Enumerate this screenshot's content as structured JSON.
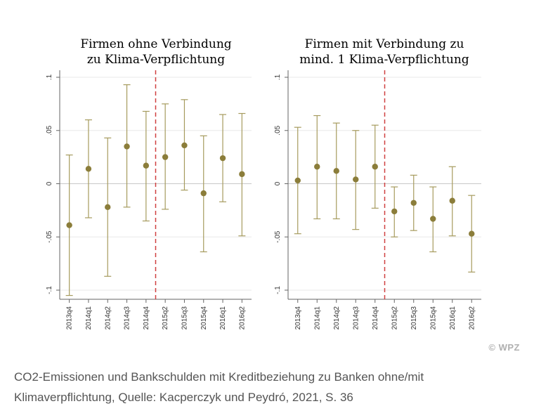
{
  "chart_data": [
    {
      "type": "scatter",
      "title_lines": [
        "Firmen ohne Verbindung",
        "zu Klima-Verpflichtung"
      ],
      "categories": [
        "2013q4",
        "2014q1",
        "2014q2",
        "2014q3",
        "2014q4",
        "2015q2",
        "2015q3",
        "2015q4",
        "2016q1",
        "2016q2"
      ],
      "values": [
        -0.039,
        0.014,
        -0.022,
        0.035,
        0.017,
        0.025,
        0.036,
        -0.009,
        0.024,
        0.009
      ],
      "lower": [
        -0.105,
        -0.032,
        -0.087,
        -0.022,
        -0.035,
        -0.024,
        -0.006,
        -0.064,
        -0.017,
        -0.049
      ],
      "upper": [
        0.027,
        0.06,
        0.043,
        0.093,
        0.068,
        0.075,
        0.079,
        0.045,
        0.065,
        0.066
      ],
      "ylim": [
        -0.1,
        0.1
      ],
      "yticks": [
        0.1,
        0.05,
        0,
        -0.05,
        -0.1
      ],
      "ytick_labels": [
        ".1",
        ".05",
        "0",
        "-.05",
        "-.1"
      ],
      "vline_after_index": 4,
      "grid": true
    },
    {
      "type": "scatter",
      "title_lines": [
        "Firmen mit Verbindung zu",
        "mind. 1 Klima-Verpflichtung"
      ],
      "categories": [
        "2013q4",
        "2014q1",
        "2014q2",
        "2014q3",
        "2014q4",
        "2015q2",
        "2015q3",
        "2015q4",
        "2016q1",
        "2016q2"
      ],
      "values": [
        0.003,
        0.016,
        0.012,
        0.004,
        0.016,
        -0.026,
        -0.018,
        -0.033,
        -0.016,
        -0.047
      ],
      "lower": [
        -0.047,
        -0.033,
        -0.033,
        -0.043,
        -0.023,
        -0.05,
        -0.044,
        -0.064,
        -0.049,
        -0.083
      ],
      "upper": [
        0.053,
        0.064,
        0.057,
        0.05,
        0.055,
        -0.003,
        0.008,
        -0.003,
        0.016,
        -0.011
      ],
      "ylim": [
        -0.1,
        0.1
      ],
      "yticks": [
        0.1,
        0.05,
        0,
        -0.05,
        -0.1
      ],
      "ytick_labels": [
        ".1",
        ".05",
        "0",
        "-.05",
        "-.1"
      ],
      "vline_after_index": 4,
      "grid": true
    }
  ],
  "colors": {
    "marker": "#8b7d3a",
    "errorbar": "#a69b5e",
    "vline": "#d04040",
    "axis": "#666666",
    "grid": "#e8e8e8"
  },
  "credit": "© WPZ",
  "caption": "CO2-Emissionen und Bankschulden mit Kreditbeziehung zu Banken ohne/mit Klimaverpflichtung, Quelle: Kacperczyk und Peydró, 2021, S. 36"
}
